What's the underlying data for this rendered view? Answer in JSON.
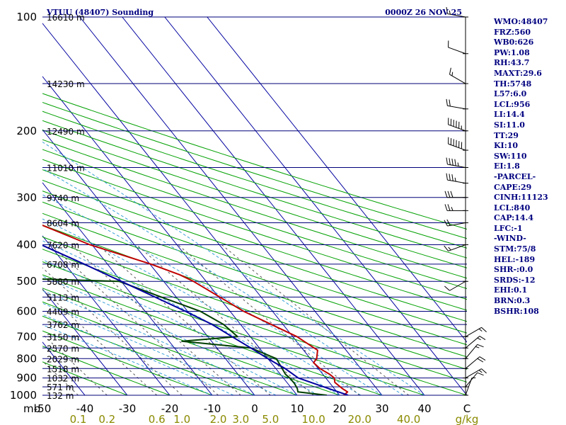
{
  "header": {
    "station": "VTUU (48407) Sounding",
    "time": "0000Z 26 NOV 25"
  },
  "chart_data": {
    "type": "skew-t",
    "title": "VTUU (48407) Sounding",
    "pressure_axis": {
      "unit_label": "mb",
      "ticks": [
        100,
        200,
        300,
        400,
        500,
        600,
        700,
        800,
        900,
        1000
      ],
      "range": [
        100,
        1000
      ],
      "scale": "log"
    },
    "temperature_axis": {
      "ticks": [
        -50,
        -40,
        -30,
        -20,
        -10,
        0,
        10,
        20,
        30,
        40
      ],
      "end_label": "C"
    },
    "mixing_ratio_axis": {
      "unit_label": "g/kg",
      "ticks": [
        "0.1",
        "0.2",
        "0.6",
        "1.0",
        "2.0",
        "3.0",
        "5.0",
        "10.0",
        "20.0",
        "40.0"
      ],
      "values": [
        0.1,
        0.2,
        0.6,
        1.0,
        2.0,
        3.0,
        5.0,
        10.0,
        20.0,
        40.0
      ]
    },
    "heights": [
      {
        "p": 100,
        "label": "16610 m"
      },
      {
        "p": 150,
        "label": "14230 m"
      },
      {
        "p": 200,
        "label": "12490 m"
      },
      {
        "p": 250,
        "label": "11010 m"
      },
      {
        "p": 300,
        "label": "9740 m"
      },
      {
        "p": 350,
        "label": "8604 m"
      },
      {
        "p": 400,
        "label": "7620 m"
      },
      {
        "p": 450,
        "label": "6708 m"
      },
      {
        "p": 500,
        "label": "5880 m"
      },
      {
        "p": 550,
        "label": "5113 m"
      },
      {
        "p": 600,
        "label": "4409 m"
      },
      {
        "p": 650,
        "label": "3762 m"
      },
      {
        "p": 700,
        "label": "3150 m"
      },
      {
        "p": 750,
        "label": "2570 m"
      },
      {
        "p": 800,
        "label": "2029 m"
      },
      {
        "p": 850,
        "label": "1518 m"
      },
      {
        "p": 900,
        "label": "1032 m"
      },
      {
        "p": 950,
        "label": "571 m"
      },
      {
        "p": 1000,
        "label": "132 m"
      }
    ],
    "series": [
      {
        "key": "temperature",
        "color": "#c00000",
        "points": [
          [
            1000,
            21
          ],
          [
            980,
            22.5
          ],
          [
            960,
            21.9
          ],
          [
            925,
            21.3
          ],
          [
            900,
            22
          ],
          [
            880,
            21.6
          ],
          [
            850,
            20.4
          ],
          [
            820,
            20
          ],
          [
            800,
            21.5
          ],
          [
            760,
            23.3
          ],
          [
            700,
            21
          ],
          [
            600,
            13.2
          ],
          [
            500,
            7
          ],
          [
            480,
            5
          ],
          [
            450,
            0.2
          ],
          [
            400,
            -10.5
          ],
          [
            350,
            -19
          ],
          [
            300,
            -30
          ],
          [
            250,
            -41.5
          ],
          [
            200,
            -54
          ],
          [
            150,
            -65
          ],
          [
            120,
            -75
          ],
          [
            100,
            -81
          ]
        ]
      },
      {
        "key": "dewpoint",
        "color": "#004000",
        "points": [
          [
            1000,
            17
          ],
          [
            980,
            10.8
          ],
          [
            960,
            11.3
          ],
          [
            930,
            11.6
          ],
          [
            900,
            11.5
          ],
          [
            880,
            11.2
          ],
          [
            850,
            11.5
          ],
          [
            800,
            12
          ],
          [
            750,
            8
          ],
          [
            720,
            -7
          ],
          [
            700,
            7
          ],
          [
            650,
            6
          ],
          [
            600,
            3
          ],
          [
            550,
            -3.5
          ],
          [
            500,
            -10.5
          ],
          [
            490,
            -36
          ],
          [
            450,
            -40
          ],
          [
            400,
            -39
          ],
          [
            350,
            -38
          ],
          [
            300,
            -38
          ],
          [
            250,
            -35
          ],
          [
            200,
            -44
          ],
          [
            190,
            -44
          ],
          [
            150,
            -63
          ],
          [
            120,
            -72
          ],
          [
            100,
            -79
          ]
        ]
      },
      {
        "key": "parcel",
        "color": "#0000a0",
        "points": [
          [
            1000,
            22
          ],
          [
            950,
            17.8
          ],
          [
            900,
            13.5
          ],
          [
            850,
            12.2
          ],
          [
            800,
            10
          ],
          [
            750,
            8
          ],
          [
            700,
            5.7
          ],
          [
            650,
            3.3
          ],
          [
            600,
            -0.5
          ],
          [
            550,
            -5
          ],
          [
            500,
            -10
          ],
          [
            450,
            -15.5
          ],
          [
            400,
            -22
          ],
          [
            350,
            -30
          ],
          [
            300,
            -39
          ],
          [
            250,
            -50
          ],
          [
            200,
            -62
          ],
          [
            150,
            -79
          ],
          [
            120,
            -91
          ],
          [
            100,
            -101
          ]
        ]
      }
    ],
    "wind_barbs": [
      {
        "p": 100,
        "dir": 280,
        "spd": 15
      },
      {
        "p": 125,
        "dir": 290,
        "spd": 10
      },
      {
        "p": 150,
        "dir": 300,
        "spd": 15
      },
      {
        "p": 175,
        "dir": 280,
        "spd": 20
      },
      {
        "p": 200,
        "dir": 290,
        "spd": 55
      },
      {
        "p": 225,
        "dir": 290,
        "spd": 60
      },
      {
        "p": 250,
        "dir": 280,
        "spd": 45
      },
      {
        "p": 275,
        "dir": 280,
        "spd": 35
      },
      {
        "p": 300,
        "dir": 270,
        "spd": 30
      },
      {
        "p": 325,
        "dir": 270,
        "spd": 25
      },
      {
        "p": 350,
        "dir": 260,
        "spd": 20
      },
      {
        "p": 400,
        "dir": 250,
        "spd": 15
      },
      {
        "p": 500,
        "dir": 240,
        "spd": 10
      },
      {
        "p": 700,
        "dir": 60,
        "spd": 15
      },
      {
        "p": 750,
        "dir": 50,
        "spd": 15
      },
      {
        "p": 800,
        "dir": 40,
        "spd": 15
      },
      {
        "p": 850,
        "dir": 50,
        "spd": 20
      },
      {
        "p": 900,
        "dir": 60,
        "spd": 15
      },
      {
        "p": 950,
        "dir": 40,
        "spd": 10
      },
      {
        "p": 1000,
        "dir": 20,
        "spd": 5
      }
    ],
    "colors": {
      "isobar": "#00007a",
      "isotherm": "#0000a0",
      "dry_adiabat": "#00a000",
      "moist_adiabat": "#3aa0d8",
      "mixing_ratio": "#555555",
      "title": "#000080",
      "wind_label_color": "#8a8a00"
    }
  },
  "indices": [
    "WMO:48407",
    "FRZ:560",
    "WB0:626",
    "PW:1.08",
    "RH:43.7",
    "MAXT:29.6",
    "TH:5748",
    "L57:6.0",
    "LCL:956",
    "LI:14.4",
    "SI:11.0",
    "TT:29",
    "KI:10",
    "SW:110",
    "EI:1.8",
    "-PARCEL-",
    "CAPE:29",
    "CINH:11123",
    "LCL:840",
    "CAP:14.4",
    "LFC:-1",
    "-WIND-",
    "STM:75/8",
    "HEL:-189",
    "SHR-:0.0",
    "SRDS:-12",
    "EHI:0.1",
    "BRN:0.3",
    "BSHR:108"
  ]
}
